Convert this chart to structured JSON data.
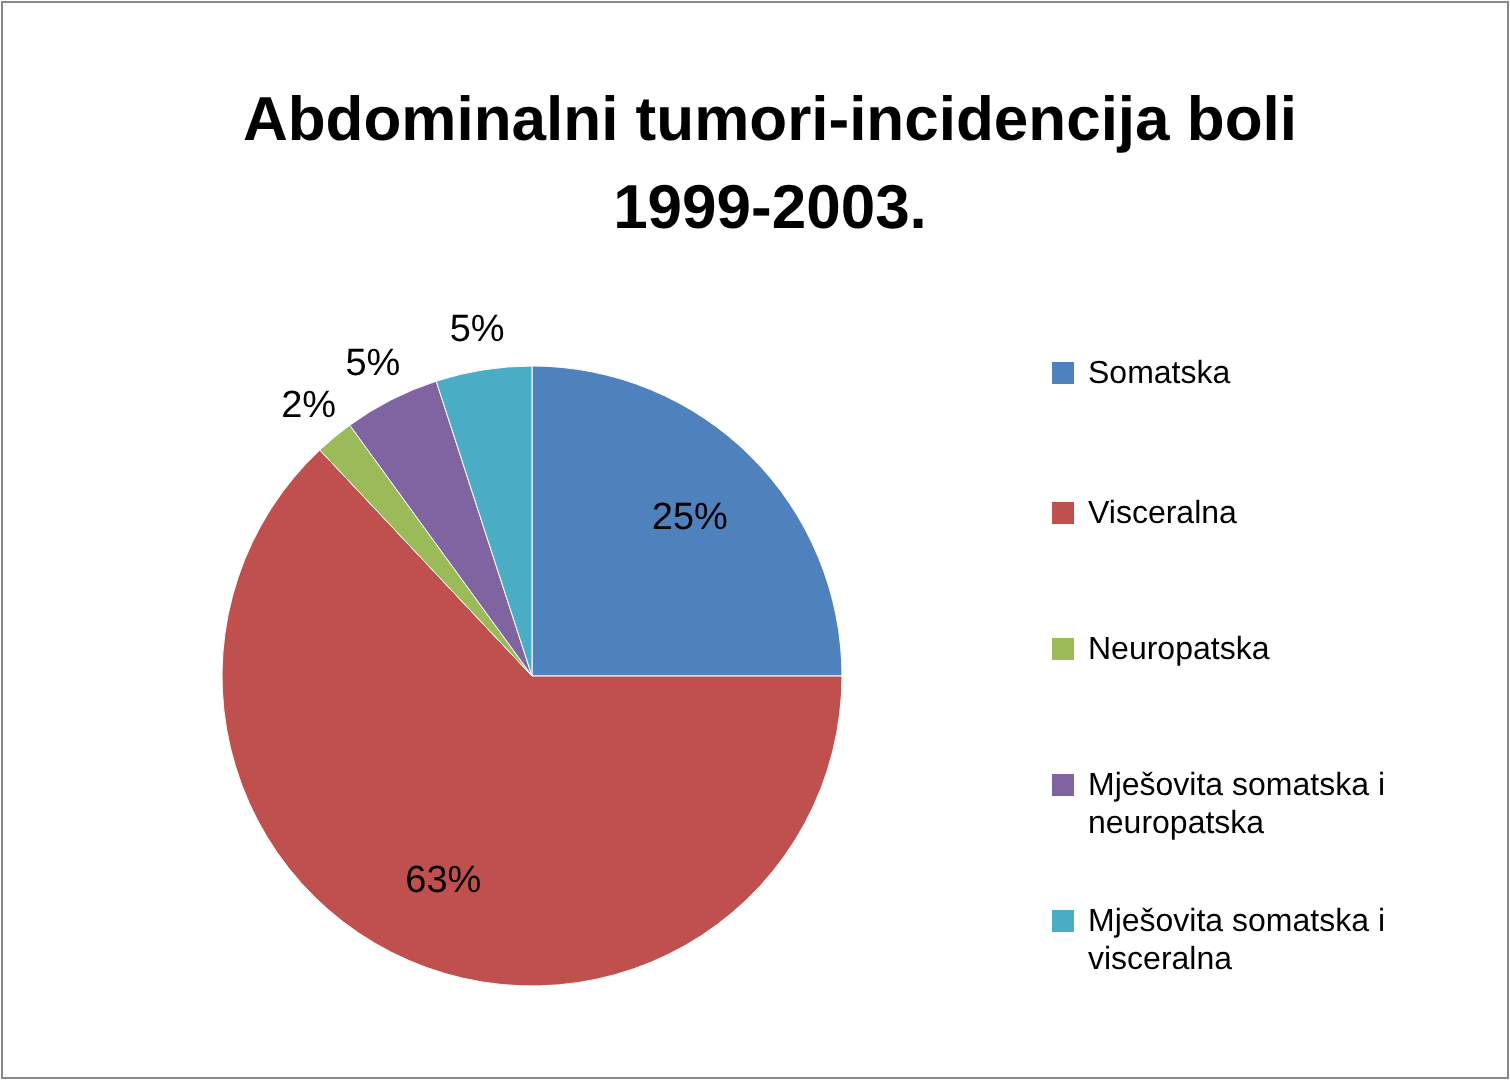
{
  "chart_data": {
    "type": "pie",
    "title": "Abdominalni tumori-incidencija boli 1999-2003.",
    "categories": [
      "Somatska",
      "Visceralna",
      "Neuropatska",
      "Mješovita somatska i neuropatska",
      "Mješovita somatska i visceralna"
    ],
    "values": [
      25,
      63,
      2,
      5,
      5
    ],
    "colors": [
      "#4f81bd",
      "#c0504d",
      "#9bbb59",
      "#8064a2",
      "#4bacc6"
    ],
    "value_labels": [
      "25%",
      "63%",
      "2%",
      "5%",
      "5%"
    ],
    "legend": "right"
  }
}
